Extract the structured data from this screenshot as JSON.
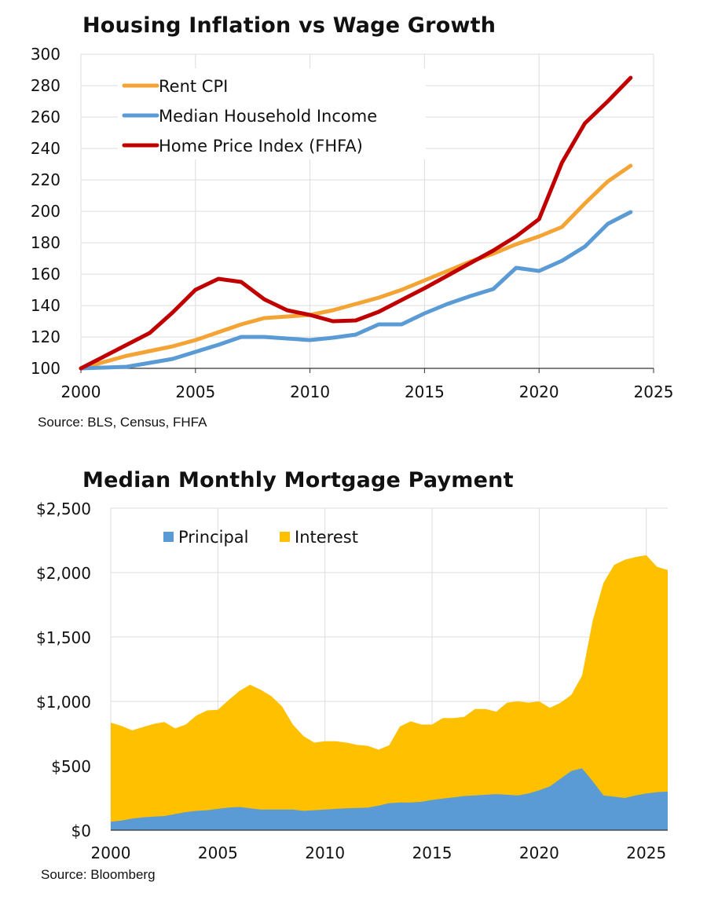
{
  "chart_data": [
    {
      "type": "line",
      "title": "Housing Inflation vs Wage Growth",
      "source": "Source: BLS, Census, FHFA",
      "xlabel": "",
      "ylabel": "",
      "xlim": [
        2000,
        2025
      ],
      "ylim": [
        100,
        300
      ],
      "xticks": [
        "2000",
        "2005",
        "2010",
        "2015",
        "2020",
        "2025"
      ],
      "yticks": [
        "100",
        "120",
        "140",
        "160",
        "180",
        "200",
        "220",
        "240",
        "260",
        "280",
        "300"
      ],
      "grid": true,
      "legend_position": "top-left",
      "x": [
        2000,
        2001,
        2002,
        2003,
        2004,
        2005,
        2006,
        2007,
        2008,
        2009,
        2010,
        2011,
        2012,
        2013,
        2014,
        2015,
        2016,
        2017,
        2018,
        2019,
        2020,
        2021,
        2022,
        2023,
        2024
      ],
      "series": [
        {
          "name": "Rent CPI",
          "color": "#f4a335",
          "values": [
            100,
            104,
            108,
            111,
            114,
            118,
            123,
            128,
            132,
            133,
            134,
            137,
            141,
            145,
            150,
            156,
            162,
            168,
            173,
            179,
            184,
            190,
            205,
            219,
            229
          ]
        },
        {
          "name": "Median Household Income",
          "color": "#5b9bd5",
          "values": [
            100,
            100.5,
            101,
            103.5,
            106,
            110.5,
            115,
            120,
            120,
            119,
            118,
            119.5,
            121.5,
            128,
            128,
            135,
            141,
            146,
            150.5,
            164,
            162,
            168.5,
            177.5,
            192,
            199.5
          ]
        },
        {
          "name": "Home Price Index (FHFA)",
          "color": "#c00000",
          "values": [
            100,
            107.5,
            115,
            122.5,
            135.5,
            150,
            157,
            155,
            144,
            137,
            134,
            130,
            130.5,
            136,
            143.5,
            151,
            159,
            167,
            175,
            184,
            195,
            231,
            256,
            270,
            285
          ]
        }
      ]
    },
    {
      "type": "area",
      "stacked": true,
      "title": "Median Monthly Mortgage Payment",
      "source": "Source: Bloomberg",
      "xlabel": "",
      "ylabel": "",
      "xlim": [
        2000,
        2026
      ],
      "ylim": [
        0,
        2500
      ],
      "xticks": [
        "2000",
        "2005",
        "2010",
        "2015",
        "2020",
        "2025"
      ],
      "yticks": [
        "$0",
        "$500",
        "$1,000",
        "$1,500",
        "$2,000",
        "$2,500"
      ],
      "grid": true,
      "legend_position": "top-left",
      "x": [
        2000,
        2000.5,
        2001,
        2001.5,
        2002,
        2002.5,
        2003,
        2003.5,
        2004,
        2004.5,
        2005,
        2005.5,
        2006,
        2006.5,
        2007,
        2007.5,
        2008,
        2008.5,
        2009,
        2009.5,
        2010,
        2010.5,
        2011,
        2011.5,
        2012,
        2012.5,
        2013,
        2013.5,
        2014,
        2014.5,
        2015,
        2015.5,
        2016,
        2016.5,
        2017,
        2017.5,
        2018,
        2018.5,
        2019,
        2019.5,
        2020,
        2020.5,
        2021,
        2021.5,
        2022,
        2022.5,
        2023,
        2023.5,
        2024,
        2024.5,
        2025,
        2025.5,
        2026
      ],
      "series": [
        {
          "name": "Principal",
          "color": "#5b9bd5",
          "values": [
            65,
            75,
            90,
            100,
            105,
            110,
            125,
            140,
            150,
            155,
            165,
            175,
            180,
            170,
            160,
            160,
            160,
            160,
            150,
            155,
            160,
            165,
            170,
            172,
            175,
            190,
            210,
            215,
            215,
            220,
            235,
            245,
            255,
            265,
            270,
            275,
            280,
            275,
            270,
            285,
            310,
            340,
            400,
            460,
            480,
            380,
            270,
            260,
            250,
            270,
            285,
            295,
            300
          ]
        },
        {
          "name": "Interest",
          "color": "#ffc000",
          "values": [
            770,
            735,
            685,
            700,
            720,
            730,
            665,
            680,
            740,
            775,
            770,
            835,
            900,
            960,
            930,
            880,
            800,
            660,
            580,
            525,
            530,
            525,
            510,
            490,
            480,
            435,
            450,
            590,
            630,
            600,
            585,
            625,
            615,
            615,
            670,
            665,
            640,
            715,
            730,
            705,
            690,
            610,
            590,
            590,
            720,
            1250,
            1650,
            1800,
            1850,
            1850,
            1850,
            1750,
            1720
          ]
        }
      ]
    }
  ]
}
